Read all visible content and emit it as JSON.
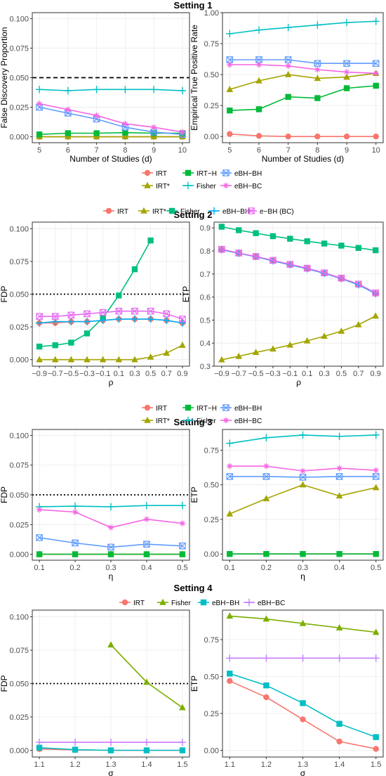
{
  "colors": {
    "IRT": "#F8766D",
    "IRT*": "#A3A500",
    "IRT-H": "#00BA38",
    "Fisher": "#00BFC4",
    "eBH-BH": "#619CFF",
    "eBH-BC": "#F564E3",
    "s2_IRT": "#F8766D",
    "s2_IRT*": "#A3A500",
    "s2_Fisher": "#00BF7D",
    "s2_eBH-BH": "#00B0F6",
    "s2_e-BH (BC)": "#E76BF3",
    "s4_IRT": "#F8766D",
    "s4_Fisher": "#7CAE00",
    "s4_eBH-BH": "#00BFC4",
    "s4_eBH-BC": "#C77CFF"
  },
  "settings": [
    {
      "title": "Setting 1",
      "legend": [
        [
          "IRT",
          "IRT-H",
          "eBH-BH"
        ],
        [
          "IRT*",
          "Fisher",
          "eBH-BC"
        ]
      ],
      "legend_labels": {
        "IRT": "IRT",
        "IRT-H": "IRT−H",
        "eBH-BH": "eBH−BH",
        "IRT*": "IRT*",
        "Fisher": "Fisher",
        "eBH-BC": "eBH−BC"
      }
    },
    {
      "title": "Setting 2",
      "legend": [
        [
          "IRT",
          "IRT*",
          "Fisher",
          "eBH-BH",
          "e-BH (BC)"
        ]
      ],
      "legend_labels": {
        "IRT": "IRT",
        "IRT*": "IRT*",
        "Fisher": "Fisher",
        "eBH-BH": "eBH−BH",
        "e-BH (BC)": "e−BH (BC)"
      }
    },
    {
      "title": "Setting 3",
      "legend": [
        [
          "IRT",
          "IRT-H",
          "eBH-BH"
        ],
        [
          "IRT*",
          "Fisher",
          "eBH-BC"
        ]
      ],
      "legend_labels": {
        "IRT": "IRT",
        "IRT-H": "IRT−H",
        "eBH-BH": "eBH−BH",
        "IRT*": "IRT*",
        "Fisher": "Fisher",
        "eBH-BC": "eBH−BC"
      }
    },
    {
      "title": "Setting 4",
      "legend": [
        [
          "IRT",
          "Fisher",
          "eBH-BH",
          "eBH-BC"
        ]
      ],
      "legend_labels": {
        "IRT": "IRT",
        "Fisher": "Fisher",
        "eBH-BH": "eBH−BH",
        "eBH-BC": "eBH−BC"
      }
    }
  ],
  "chart_data": [
    {
      "type": "line",
      "setting": 1,
      "side": "left",
      "xlabel": "Number of Studies (d)",
      "ylabel": "False Discovery Proportion",
      "x": [
        5,
        6,
        7,
        8,
        9,
        10
      ],
      "xlim": [
        5,
        10
      ],
      "ylim": [
        0,
        0.1
      ],
      "xticks": [
        "5",
        "6",
        "7",
        "8",
        "9",
        "10"
      ],
      "yticks": [
        "0.000",
        "0.025",
        "0.050",
        "0.075",
        "0.100"
      ],
      "reference_line": {
        "y": 0.05,
        "style": "dashed"
      },
      "series": [
        {
          "key": "IRT",
          "marker": "circle",
          "values": [
            0.0,
            0.0,
            0.0,
            0.0,
            0.0,
            0.0
          ]
        },
        {
          "key": "IRT*",
          "marker": "triangle",
          "values": [
            0.0,
            0.0,
            0.0,
            0.0,
            0.0,
            0.0
          ]
        },
        {
          "key": "IRT-H",
          "marker": "square",
          "values": [
            0.002,
            0.003,
            0.003,
            0.0035,
            0.003,
            0.003
          ]
        },
        {
          "key": "Fisher",
          "marker": "plus",
          "values": [
            0.04,
            0.039,
            0.04,
            0.04,
            0.04,
            0.039
          ]
        },
        {
          "key": "eBH-BH",
          "marker": "boxx",
          "values": [
            0.025,
            0.02,
            0.015,
            0.008,
            0.004,
            0.002
          ]
        },
        {
          "key": "eBH-BC",
          "marker": "asterisk",
          "values": [
            0.028,
            0.023,
            0.018,
            0.011,
            0.008,
            0.004
          ]
        }
      ]
    },
    {
      "type": "line",
      "setting": 1,
      "side": "right",
      "xlabel": "Number of Studies (d)",
      "ylabel": "Empirical True Positive Rate",
      "x": [
        5,
        6,
        7,
        8,
        9,
        10
      ],
      "xlim": [
        5,
        10
      ],
      "ylim": [
        0,
        1
      ],
      "xticks": [
        "5",
        "6",
        "7",
        "8",
        "9",
        "10"
      ],
      "yticks": [
        "0.00",
        "0.25",
        "0.50",
        "0.75",
        "1.00"
      ],
      "series": [
        {
          "key": "IRT",
          "marker": "circle",
          "values": [
            0.02,
            0.005,
            0.0,
            0.0,
            0.0,
            0.0
          ]
        },
        {
          "key": "IRT*",
          "marker": "triangle",
          "values": [
            0.38,
            0.45,
            0.5,
            0.47,
            0.48,
            0.51
          ]
        },
        {
          "key": "IRT-H",
          "marker": "square",
          "values": [
            0.21,
            0.22,
            0.32,
            0.31,
            0.39,
            0.41
          ]
        },
        {
          "key": "Fisher",
          "marker": "plus",
          "values": [
            0.83,
            0.86,
            0.88,
            0.9,
            0.92,
            0.93
          ]
        },
        {
          "key": "eBH-BH",
          "marker": "boxx",
          "values": [
            0.62,
            0.62,
            0.62,
            0.59,
            0.59,
            0.59
          ]
        },
        {
          "key": "eBH-BC",
          "marker": "asterisk",
          "values": [
            0.58,
            0.58,
            0.57,
            0.54,
            0.52,
            0.51
          ]
        }
      ]
    },
    {
      "type": "line",
      "setting": 2,
      "side": "left",
      "xlabel": "ρ",
      "ylabel": "FDP",
      "x": [
        -0.9,
        -0.7,
        -0.5,
        -0.3,
        -0.1,
        0.1,
        0.3,
        0.5,
        0.7,
        0.9
      ],
      "xlim": [
        -0.9,
        0.9
      ],
      "ylim": [
        0,
        0.1
      ],
      "xticks": [
        "−0.9",
        "−0.7",
        "−0.5",
        "−0.3",
        "−0.1",
        "0.1",
        "0.3",
        "0.5",
        "0.7",
        "0.9"
      ],
      "yticks": [
        "0.000",
        "0.025",
        "0.050",
        "0.075",
        "0.100"
      ],
      "reference_line": {
        "y": 0.05,
        "style": "dotted"
      },
      "series": [
        {
          "key": "s2_IRT",
          "marker": "circle",
          "values": [
            0.028,
            0.028,
            0.029,
            0.029,
            0.03,
            0.031,
            0.031,
            0.031,
            0.03,
            0.028
          ]
        },
        {
          "key": "s2_IRT*",
          "marker": "triangle",
          "values": [
            0.0,
            0.0,
            0.0,
            0.0,
            0.0,
            0.0,
            0.0,
            0.002,
            0.005,
            0.011
          ]
        },
        {
          "key": "s2_Fisher",
          "marker": "square",
          "values": [
            0.01,
            0.011,
            0.013,
            0.02,
            0.032,
            0.049,
            0.069,
            0.091,
            null,
            null
          ]
        },
        {
          "key": "s2_eBH-BH",
          "marker": "plus",
          "values": [
            0.028,
            0.029,
            0.029,
            0.029,
            0.03,
            0.031,
            0.031,
            0.031,
            0.03,
            0.028
          ]
        },
        {
          "key": "s2_e-BH (BC)",
          "marker": "boxx",
          "values": [
            0.033,
            0.033,
            0.034,
            0.035,
            0.036,
            0.037,
            0.037,
            0.037,
            0.035,
            0.031
          ]
        }
      ]
    },
    {
      "type": "line",
      "setting": 2,
      "side": "right",
      "xlabel": "ρ",
      "ylabel": "ETP",
      "x": [
        -0.9,
        -0.7,
        -0.5,
        -0.3,
        -0.1,
        0.1,
        0.3,
        0.5,
        0.7,
        0.9
      ],
      "xlim": [
        -0.9,
        0.9
      ],
      "ylim": [
        0.3,
        0.9
      ],
      "xticks": [
        "−0.9",
        "−0.7",
        "−0.5",
        "−0.3",
        "−0.1",
        "0.1",
        "0.3",
        "0.5",
        "0.7",
        "0.9"
      ],
      "yticks": [
        "0.3",
        "0.4",
        "0.5",
        "0.6",
        "0.7",
        "0.8",
        "0.9"
      ],
      "series": [
        {
          "key": "s2_IRT",
          "marker": "circle",
          "values": [
            0.805,
            0.79,
            0.775,
            0.757,
            0.74,
            0.723,
            0.703,
            0.68,
            0.653,
            0.615
          ]
        },
        {
          "key": "s2_IRT*",
          "marker": "triangle",
          "values": [
            0.328,
            0.343,
            0.36,
            0.375,
            0.392,
            0.41,
            0.43,
            0.452,
            0.48,
            0.518
          ]
        },
        {
          "key": "s2_Fisher",
          "marker": "square",
          "values": [
            0.905,
            0.89,
            0.877,
            0.864,
            0.853,
            0.842,
            0.832,
            0.823,
            0.813,
            0.803
          ]
        },
        {
          "key": "s2_eBH-BH",
          "marker": "plus",
          "values": [
            0.805,
            0.79,
            0.775,
            0.757,
            0.74,
            0.723,
            0.703,
            0.68,
            0.653,
            0.615
          ]
        },
        {
          "key": "s2_e-BH (BC)",
          "marker": "boxx",
          "values": [
            0.807,
            0.791,
            0.776,
            0.759,
            0.742,
            0.725,
            0.705,
            0.682,
            0.656,
            0.618
          ]
        }
      ]
    },
    {
      "type": "line",
      "setting": 3,
      "side": "left",
      "xlabel": "η",
      "ylabel": "FDP",
      "x": [
        0.1,
        0.2,
        0.3,
        0.4,
        0.5
      ],
      "xlim": [
        0.1,
        0.5
      ],
      "ylim": [
        0,
        0.1
      ],
      "xticks": [
        "0.1",
        "0.2",
        "0.3",
        "0.4",
        "0.5"
      ],
      "yticks": [
        "0.000",
        "0.025",
        "0.050",
        "0.075",
        "0.100"
      ],
      "reference_line": {
        "y": 0.05,
        "style": "dotted"
      },
      "series": [
        {
          "key": "IRT",
          "marker": "circle",
          "values": [
            0.0,
            0.0,
            0.0,
            0.0,
            0.0
          ]
        },
        {
          "key": "IRT*",
          "marker": "triangle",
          "values": [
            0.0,
            0.0,
            0.0,
            0.0,
            0.0
          ]
        },
        {
          "key": "IRT-H",
          "marker": "square",
          "values": [
            0.0,
            0.0,
            0.0,
            0.0,
            0.0
          ]
        },
        {
          "key": "Fisher",
          "marker": "plus",
          "values": [
            0.04,
            0.0405,
            0.04,
            0.041,
            0.041
          ]
        },
        {
          "key": "eBH-BH",
          "marker": "boxx",
          "values": [
            0.014,
            0.0095,
            0.006,
            0.0085,
            0.007
          ]
        },
        {
          "key": "eBH-BC",
          "marker": "asterisk",
          "values": [
            0.0375,
            0.0355,
            0.0225,
            0.0295,
            0.026
          ]
        }
      ]
    },
    {
      "type": "line",
      "setting": 3,
      "side": "right",
      "xlabel": "η",
      "ylabel": "ETP",
      "x": [
        0.1,
        0.2,
        0.3,
        0.4,
        0.5
      ],
      "xlim": [
        0.1,
        0.5
      ],
      "ylim": [
        0,
        0.9
      ],
      "xticks": [
        "0.1",
        "0.2",
        "0.3",
        "0.4",
        "0.5"
      ],
      "yticks": [
        "0.00",
        "0.25",
        "0.50",
        "0.75"
      ],
      "series": [
        {
          "key": "IRT",
          "marker": "circle",
          "values": [
            0.0,
            0.0,
            0.0,
            0.0,
            0.0
          ]
        },
        {
          "key": "IRT*",
          "marker": "triangle",
          "values": [
            0.29,
            0.4,
            0.5,
            0.42,
            0.48
          ]
        },
        {
          "key": "IRT-H",
          "marker": "square",
          "values": [
            0.0,
            0.0,
            0.0,
            0.0,
            0.0
          ]
        },
        {
          "key": "Fisher",
          "marker": "plus",
          "values": [
            0.8,
            0.84,
            0.86,
            0.85,
            0.86
          ]
        },
        {
          "key": "eBH-BH",
          "marker": "boxx",
          "values": [
            0.56,
            0.56,
            0.555,
            0.56,
            0.56
          ]
        },
        {
          "key": "eBH-BC",
          "marker": "asterisk",
          "values": [
            0.635,
            0.635,
            0.6,
            0.62,
            0.605
          ]
        }
      ]
    },
    {
      "type": "line",
      "setting": 4,
      "side": "left",
      "xlabel": "σ",
      "ylabel": "FDP",
      "x": [
        1.1,
        1.2,
        1.3,
        1.4,
        1.5
      ],
      "xlim": [
        1.1,
        1.5
      ],
      "ylim": [
        0,
        0.1
      ],
      "xticks": [
        "1.1",
        "1.2",
        "1.3",
        "1.4",
        "1.5"
      ],
      "yticks": [
        "0.000",
        "0.025",
        "0.050",
        "0.075",
        "0.100"
      ],
      "reference_line": {
        "y": 0.05,
        "style": "dotted"
      },
      "series": [
        {
          "key": "s4_IRT",
          "marker": "circle",
          "values": [
            0.001,
            0.0003,
            0.0,
            0.0,
            0.0
          ]
        },
        {
          "key": "s4_Fisher",
          "marker": "triangle",
          "values": [
            null,
            null,
            0.079,
            0.051,
            0.032
          ]
        },
        {
          "key": "s4_eBH-BH",
          "marker": "square",
          "values": [
            0.002,
            0.0005,
            0.0,
            0.0,
            0.0
          ]
        },
        {
          "key": "s4_eBH-BC",
          "marker": "plus",
          "values": [
            0.006,
            0.006,
            0.006,
            0.006,
            0.006
          ]
        }
      ]
    },
    {
      "type": "line",
      "setting": 4,
      "side": "right",
      "xlabel": "σ",
      "ylabel": "ETP",
      "x": [
        1.1,
        1.2,
        1.3,
        1.4,
        1.5
      ],
      "xlim": [
        1.1,
        1.5
      ],
      "ylim": [
        0,
        0.92
      ],
      "xticks": [
        "1.1",
        "1.2",
        "1.3",
        "1.4",
        "1.5"
      ],
      "yticks": [
        "0.00",
        "0.25",
        "0.50",
        "0.75"
      ],
      "series": [
        {
          "key": "s4_IRT",
          "marker": "circle",
          "values": [
            0.47,
            0.36,
            0.21,
            0.06,
            0.01
          ]
        },
        {
          "key": "s4_Fisher",
          "marker": "triangle",
          "values": [
            0.91,
            0.89,
            0.86,
            0.83,
            0.8
          ]
        },
        {
          "key": "s4_eBH-BH",
          "marker": "square",
          "values": [
            0.52,
            0.44,
            0.32,
            0.18,
            0.09
          ]
        },
        {
          "key": "s4_eBH-BC",
          "marker": "plus",
          "values": [
            0.625,
            0.625,
            0.625,
            0.625,
            0.625
          ]
        }
      ]
    }
  ]
}
